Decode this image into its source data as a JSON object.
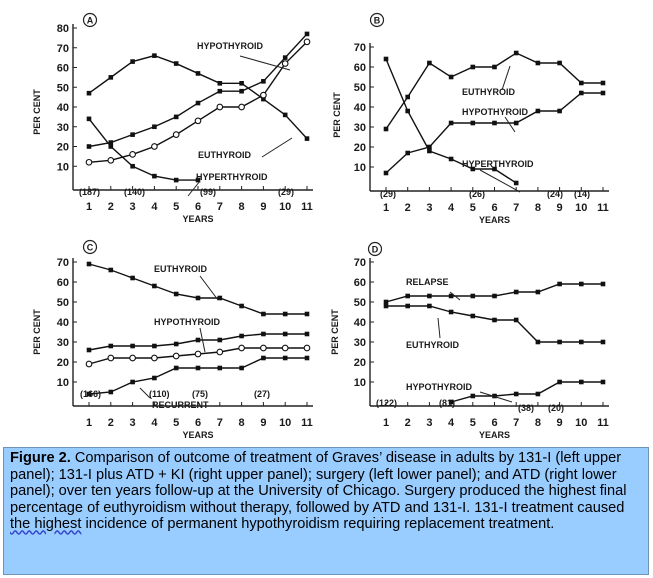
{
  "caption": {
    "label": "Figure 2.",
    "text_part1": "Comparison of outcome of treatment of Graves’ disease in adults by 131-I (left upper panel); 131-I plus ATD + KI (right upper panel); surgery (left lower panel); and ATD (right lower panel); over ten years follow-up at the University of Chicago. Surgery produced the highest final percentage of euthyroidism without therapy, followed by ATD and 131-I. 131-I treatment caused ",
    "underlined": "the  highest",
    "text_part2": " incidence of permanent hypothyroidism requiring replacement treatment."
  },
  "chart_data": [
    {
      "type": "line",
      "panel_letter": "A",
      "ylabel": "PER CENT",
      "xlabel": "YEARS",
      "x_ticks": [
        "1",
        "2",
        "3",
        "4",
        "5",
        "6",
        "7",
        "8",
        "9",
        "10",
        "11"
      ],
      "y_ticks": [
        "10",
        "20",
        "30",
        "40",
        "50",
        "60",
        "70",
        "80"
      ],
      "xlim": [
        1,
        11
      ],
      "ylim": [
        0,
        80
      ],
      "series": [
        {
          "name": "HYPOTHYROID",
          "marker": "filled",
          "x": [
            1,
            2,
            3,
            4,
            5,
            6,
            7,
            8,
            9,
            10,
            11
          ],
          "y": [
            20,
            22,
            26,
            30,
            35,
            42,
            48,
            48,
            53,
            65,
            77
          ]
        },
        {
          "name": "EUTHYROID",
          "marker": "filled",
          "x": [
            1,
            2,
            3,
            4,
            5,
            6,
            7,
            8,
            9,
            10,
            11
          ],
          "y": [
            47,
            55,
            63,
            66,
            62,
            57,
            52,
            52,
            44,
            36,
            24
          ]
        },
        {
          "name": "",
          "marker": "open",
          "x": [
            1,
            2,
            3,
            4,
            5,
            6,
            7,
            8,
            9,
            10,
            11
          ],
          "y": [
            12,
            13,
            16,
            20,
            26,
            33,
            40,
            40,
            46,
            62,
            73
          ]
        },
        {
          "name": "HYPERTHYROID",
          "marker": "filled",
          "x": [
            1,
            2,
            3,
            4,
            5,
            6
          ],
          "y": [
            34,
            20,
            10,
            5,
            3,
            3
          ]
        }
      ],
      "annotations": [
        "(187)",
        "(140)",
        "(99)",
        "(29)"
      ]
    },
    {
      "type": "line",
      "panel_letter": "B",
      "ylabel": "PER CENT",
      "xlabel": "YEARS",
      "x_ticks": [
        "1",
        "2",
        "3",
        "4",
        "5",
        "6",
        "7",
        "8",
        "9",
        "10",
        "11"
      ],
      "y_ticks": [
        "10",
        "20",
        "30",
        "40",
        "50",
        "60",
        "70"
      ],
      "xlim": [
        1,
        11
      ],
      "ylim": [
        0,
        70
      ],
      "series": [
        {
          "name": "EUTHYROID",
          "marker": "filled",
          "x": [
            1,
            2,
            3,
            4,
            5,
            6,
            7,
            8,
            9,
            10,
            11
          ],
          "y": [
            29,
            45,
            62,
            55,
            60,
            60,
            67,
            62,
            62,
            52,
            52
          ]
        },
        {
          "name": "HYPOTHYROID",
          "marker": "filled",
          "x": [
            1,
            2,
            3,
            4,
            5,
            6,
            7,
            8,
            9,
            10,
            11
          ],
          "y": [
            7,
            17,
            20,
            32,
            32,
            32,
            32,
            38,
            38,
            47,
            47
          ]
        },
        {
          "name": "HYPERTHYROID",
          "marker": "filled",
          "x": [
            1,
            2,
            3,
            4,
            5,
            6,
            7
          ],
          "y": [
            64,
            38,
            18,
            14,
            9,
            9,
            2
          ]
        }
      ],
      "annotations": [
        "(29)",
        "(26)",
        "(24)",
        "(14)"
      ]
    },
    {
      "type": "line",
      "panel_letter": "C",
      "ylabel": "PER CENT",
      "xlabel": "YEARS",
      "x_ticks": [
        "1",
        "2",
        "3",
        "4",
        "5",
        "6",
        "7",
        "8",
        "9",
        "10",
        "11"
      ],
      "y_ticks": [
        "10",
        "20",
        "30",
        "40",
        "50",
        "60",
        "70"
      ],
      "xlim": [
        1,
        11
      ],
      "ylim": [
        0,
        70
      ],
      "series": [
        {
          "name": "EUTHYROID",
          "marker": "filled",
          "x": [
            1,
            2,
            3,
            4,
            5,
            6,
            7,
            8,
            9,
            10,
            11
          ],
          "y": [
            69,
            66,
            62,
            58,
            54,
            52,
            52,
            48,
            44,
            44,
            44
          ]
        },
        {
          "name": "HYPOTHYROID",
          "marker": "filled",
          "x": [
            1,
            2,
            3,
            4,
            5,
            6,
            7,
            8,
            9,
            10,
            11
          ],
          "y": [
            26,
            28,
            28,
            28,
            29,
            31,
            31,
            33,
            34,
            34,
            34
          ]
        },
        {
          "name": "",
          "marker": "open",
          "x": [
            1,
            2,
            3,
            4,
            5,
            6,
            7,
            8,
            9,
            10,
            11
          ],
          "y": [
            19,
            22,
            22,
            22,
            23,
            24,
            25,
            27,
            27,
            27,
            27
          ]
        },
        {
          "name": "RECURRENT",
          "marker": "filled",
          "x": [
            1,
            2,
            3,
            4,
            5,
            6,
            7,
            8,
            9,
            10,
            11
          ],
          "y": [
            4,
            5,
            10,
            12,
            17,
            17,
            17,
            17,
            22,
            22,
            22
          ]
        }
      ],
      "annotations": [
        "(166)",
        "(110)",
        "(75)",
        "(27)"
      ]
    },
    {
      "type": "line",
      "panel_letter": "D",
      "ylabel": "PER CENT",
      "xlabel": "YEARS",
      "x_ticks": [
        "1",
        "2",
        "3",
        "4",
        "5",
        "6",
        "7",
        "8",
        "9",
        "10",
        "11"
      ],
      "y_ticks": [
        "10",
        "20",
        "30",
        "40",
        "50",
        "60",
        "70"
      ],
      "xlim": [
        1,
        11
      ],
      "ylim": [
        0,
        70
      ],
      "series": [
        {
          "name": "RELAPSE",
          "marker": "filled",
          "x": [
            1,
            2,
            3,
            4,
            5,
            6,
            7,
            8,
            9,
            10,
            11
          ],
          "y": [
            50,
            53,
            53,
            53,
            53,
            53,
            55,
            55,
            59,
            59,
            59
          ]
        },
        {
          "name": "EUTHYROID",
          "marker": "filled",
          "x": [
            1,
            2,
            3,
            4,
            5,
            6,
            7,
            8,
            9,
            10,
            11
          ],
          "y": [
            48,
            48,
            48,
            45,
            43,
            41,
            41,
            30,
            30,
            30,
            30
          ]
        },
        {
          "name": "HYPOTHYROID",
          "marker": "filled",
          "x": [
            4,
            5,
            6,
            7,
            8,
            9,
            10,
            11
          ],
          "y": [
            0,
            3,
            3,
            4,
            4,
            10,
            10,
            10
          ]
        }
      ],
      "annotations": [
        "(122)",
        "(81)",
        "(38)",
        "(20)"
      ]
    }
  ]
}
